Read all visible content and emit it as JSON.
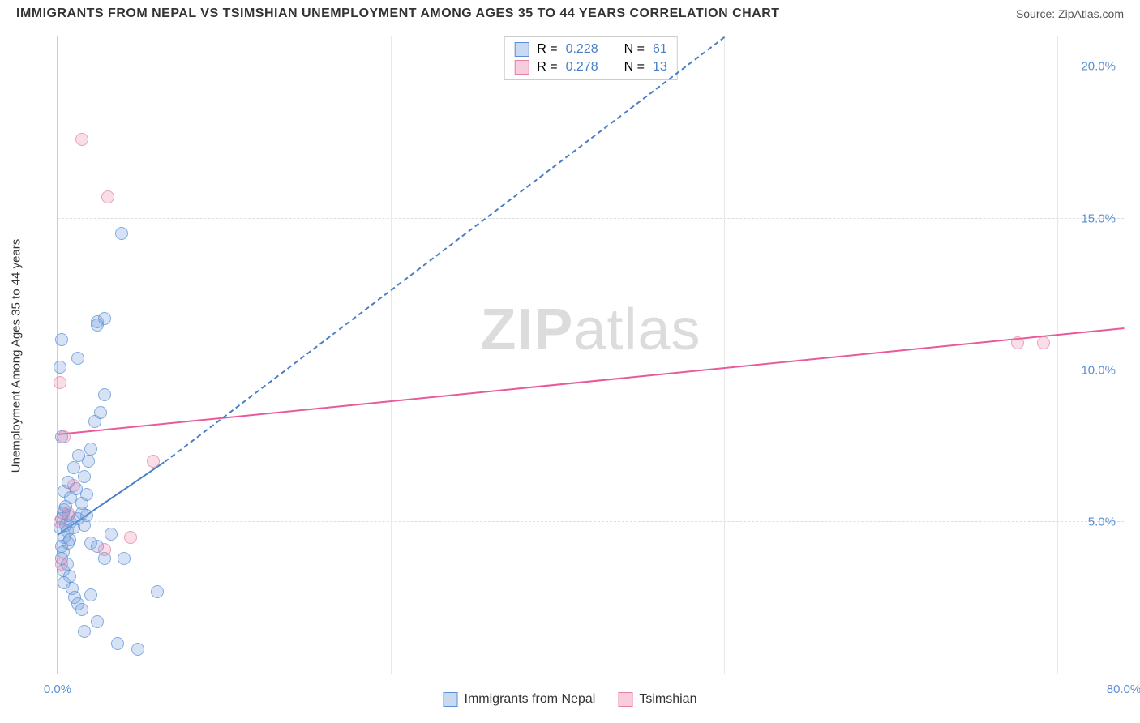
{
  "title": "IMMIGRANTS FROM NEPAL VS TSIMSHIAN UNEMPLOYMENT AMONG AGES 35 TO 44 YEARS CORRELATION CHART",
  "source": "Source: ZipAtlas.com",
  "ylabel": "Unemployment Among Ages 35 to 44 years",
  "watermark_a": "ZIP",
  "watermark_b": "atlas",
  "chart": {
    "type": "scatter",
    "xlim": [
      0,
      80
    ],
    "ylim": [
      0,
      21
    ],
    "xticks": [
      {
        "v": 0,
        "l": "0.0%"
      },
      {
        "v": 80,
        "l": "80.0%"
      }
    ],
    "yticks": [
      {
        "v": 5,
        "l": "5.0%"
      },
      {
        "v": 10,
        "l": "10.0%"
      },
      {
        "v": 15,
        "l": "15.0%"
      },
      {
        "v": 20,
        "l": "20.0%"
      }
    ],
    "vgrids": [
      25,
      50,
      75
    ],
    "background_color": "#ffffff",
    "grid_color": "#dddddd",
    "series": [
      {
        "name": "Immigrants from Nepal",
        "color": "#5a8fd6",
        "fill": "rgba(120,160,220,0.4)",
        "R": "0.228",
        "N": "61",
        "trend": {
          "x1": 0,
          "y1": 4.6,
          "x2": 8,
          "y2": 7.0,
          "solid_until": 8,
          "ext_x2": 50,
          "ext_y2": 21,
          "color": "#4a7fc6"
        },
        "points": [
          [
            0.2,
            4.8
          ],
          [
            0.3,
            5.1
          ],
          [
            0.5,
            4.5
          ],
          [
            0.4,
            5.3
          ],
          [
            0.6,
            4.9
          ],
          [
            0.8,
            5.2
          ],
          [
            0.3,
            4.2
          ],
          [
            0.7,
            4.7
          ],
          [
            0.5,
            5.4
          ],
          [
            0.9,
            4.4
          ],
          [
            1.0,
            5.0
          ],
          [
            0.4,
            4.0
          ],
          [
            0.6,
            5.5
          ],
          [
            0.8,
            4.3
          ],
          [
            1.2,
            4.8
          ],
          [
            0.3,
            3.8
          ],
          [
            1.5,
            5.1
          ],
          [
            0.7,
            3.6
          ],
          [
            1.8,
            5.3
          ],
          [
            0.4,
            3.4
          ],
          [
            2.0,
            4.9
          ],
          [
            0.9,
            3.2
          ],
          [
            2.2,
            5.2
          ],
          [
            0.5,
            3.0
          ],
          [
            1.1,
            2.8
          ],
          [
            1.3,
            2.5
          ],
          [
            1.5,
            2.3
          ],
          [
            1.8,
            2.1
          ],
          [
            2.5,
            2.6
          ],
          [
            2.0,
            1.4
          ],
          [
            3.0,
            1.7
          ],
          [
            4.5,
            1.0
          ],
          [
            6.0,
            0.8
          ],
          [
            2.5,
            4.3
          ],
          [
            3.5,
            3.8
          ],
          [
            5.0,
            3.8
          ],
          [
            7.5,
            2.7
          ],
          [
            4.0,
            4.6
          ],
          [
            3.0,
            4.2
          ],
          [
            0.5,
            6.0
          ],
          [
            0.8,
            6.3
          ],
          [
            1.2,
            6.8
          ],
          [
            1.6,
            7.2
          ],
          [
            2.0,
            6.5
          ],
          [
            2.3,
            7.0
          ],
          [
            2.5,
            7.4
          ],
          [
            0.3,
            7.8
          ],
          [
            2.8,
            8.3
          ],
          [
            3.2,
            8.6
          ],
          [
            3.5,
            9.2
          ],
          [
            0.2,
            10.1
          ],
          [
            1.5,
            10.4
          ],
          [
            3.0,
            11.6
          ],
          [
            3.5,
            11.7
          ],
          [
            3.0,
            11.5
          ],
          [
            0.3,
            11.0
          ],
          [
            4.8,
            14.5
          ],
          [
            1.0,
            5.8
          ],
          [
            1.4,
            6.1
          ],
          [
            1.8,
            5.6
          ],
          [
            2.2,
            5.9
          ]
        ]
      },
      {
        "name": "Tsimshian",
        "color": "#e85a9a",
        "fill": "rgba(235,130,170,0.4)",
        "R": "0.278",
        "N": "13",
        "trend": {
          "x1": 0,
          "y1": 7.9,
          "x2": 80,
          "y2": 11.4,
          "color": "#e85a9a"
        },
        "points": [
          [
            0.3,
            3.6
          ],
          [
            0.2,
            5.0
          ],
          [
            0.8,
            5.3
          ],
          [
            3.5,
            4.1
          ],
          [
            5.5,
            4.5
          ],
          [
            1.2,
            6.2
          ],
          [
            7.2,
            7.0
          ],
          [
            0.5,
            7.8
          ],
          [
            0.2,
            9.6
          ],
          [
            3.8,
            15.7
          ],
          [
            1.8,
            17.6
          ],
          [
            72,
            10.9
          ],
          [
            74,
            10.9
          ]
        ]
      }
    ]
  },
  "legend_bottom": [
    {
      "swatch": "s1",
      "label": "Immigrants from Nepal"
    },
    {
      "swatch": "s2",
      "label": "Tsimshian"
    }
  ]
}
